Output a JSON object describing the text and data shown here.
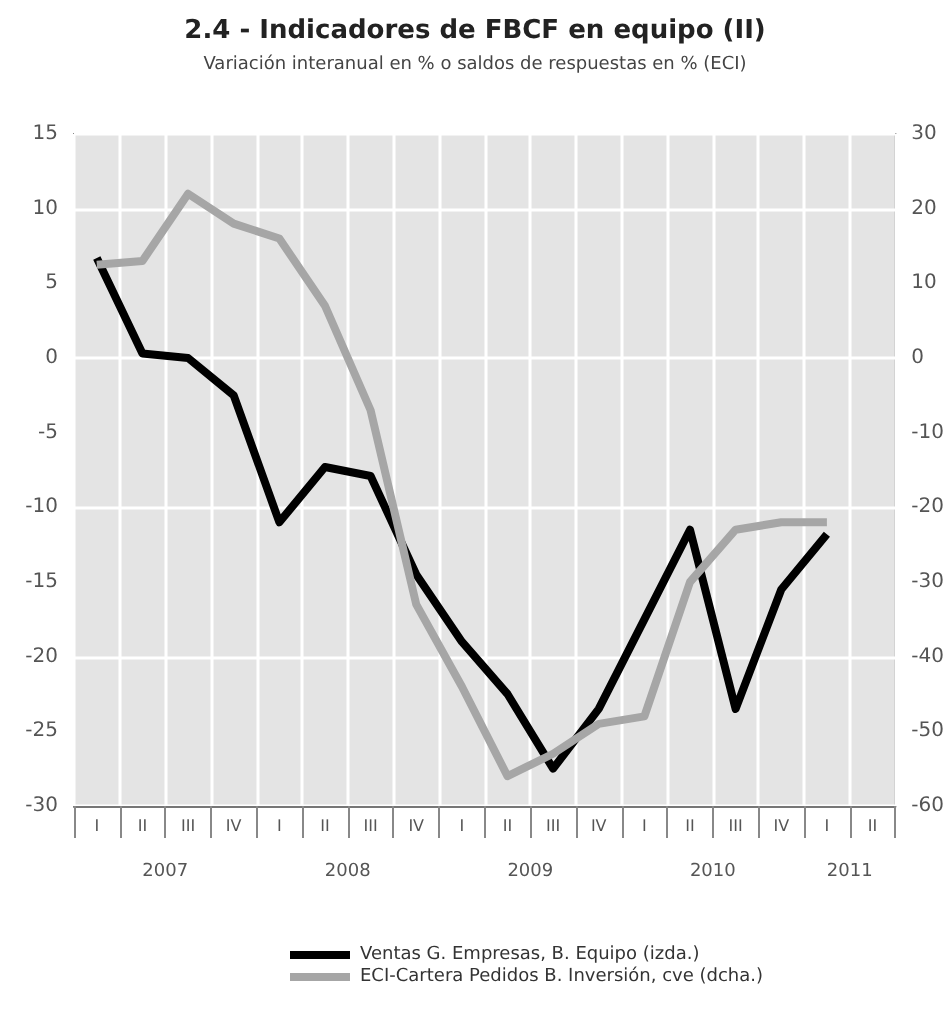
{
  "chart_data": {
    "type": "line",
    "title": "2.4 - Indicadores de FBCF en equipo (II)",
    "subtitle": "Variación interanual en % o saldos de respuestas en % (ECI)",
    "categories": [
      "I",
      "II",
      "III",
      "IV",
      "I",
      "II",
      "III",
      "IV",
      "I",
      "II",
      "III",
      "IV",
      "I",
      "II",
      "III",
      "IV",
      "I",
      "II"
    ],
    "annotations": [
      "2007",
      "2008",
      "2009",
      "2010",
      "2011"
    ],
    "series": [
      {
        "name": "Ventas G. Empresas, B. Equipo (izda.)",
        "color": "#000000",
        "values": [
          6.7,
          0.3,
          0,
          -2.5,
          -11,
          -7.3,
          -7.9,
          -14.5,
          -19,
          -22.5,
          -27.5,
          -23.5,
          -17.5,
          -11.5,
          -23.5,
          -15.5,
          -11.8,
          null
        ]
      },
      {
        "name": "ECI-Cartera Pedidos B. Inversión, cve (dcha.)",
        "color": "#a6a6a6",
        "axis": "y2",
        "values": [
          12.5,
          13,
          22,
          18,
          16,
          7,
          -7,
          -33,
          -44,
          -56,
          -53,
          -49,
          -48,
          -30,
          -23,
          -22,
          -22,
          null
        ]
      }
    ],
    "ylim": [
      -30,
      15
    ],
    "yticks": [
      -30,
      -25,
      -20,
      -15,
      -10,
      -5,
      0,
      5,
      10,
      15
    ],
    "y2lim": [
      -60,
      30
    ],
    "y2ticks": [
      -60,
      -50,
      -40,
      -30,
      -20,
      -10,
      0,
      10,
      20,
      30
    ],
    "grid": true,
    "legend": "bottom",
    "marker": "none",
    "line_style": "solid"
  }
}
